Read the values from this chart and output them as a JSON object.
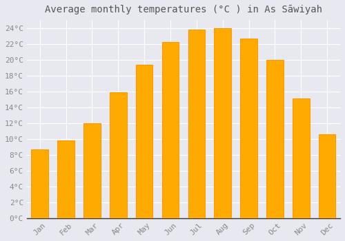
{
  "title": "Average monthly temperatures (°C ) in As Sāwiyah",
  "months": [
    "Jan",
    "Feb",
    "Mar",
    "Apr",
    "May",
    "Jun",
    "Jul",
    "Aug",
    "Sep",
    "Oct",
    "Nov",
    "Dec"
  ],
  "values": [
    8.7,
    9.8,
    12.0,
    15.9,
    19.4,
    22.2,
    23.8,
    24.0,
    22.7,
    20.0,
    15.1,
    10.6
  ],
  "bar_color": "#FFAA00",
  "bar_edge_color": "#FF9900",
  "background_color": "#E8E8F0",
  "plot_bg_color": "#E8E8F0",
  "grid_color": "#FFFFFF",
  "text_color": "#888888",
  "title_color": "#555555",
  "ylim": [
    0,
    25
  ],
  "ytick_step": 2,
  "title_fontsize": 10,
  "tick_fontsize": 8,
  "font_family": "monospace"
}
